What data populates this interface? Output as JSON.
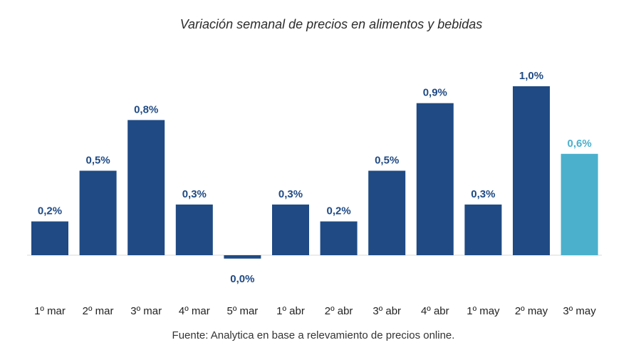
{
  "chart_data": {
    "type": "bar",
    "title": "Variación semanal de precios en alimentos y bebidas",
    "categories": [
      "1º mar",
      "2º mar",
      "3º mar",
      "4º mar",
      "5º mar",
      "1º abr",
      "2º abr",
      "3º abr",
      "4º abr",
      "1º may",
      "2º may",
      "3º may"
    ],
    "values": [
      0.2,
      0.5,
      0.8,
      0.3,
      -0.02,
      0.3,
      0.2,
      0.5,
      0.9,
      0.3,
      1.0,
      0.6
    ],
    "data_labels": [
      "0,2%",
      "0,5%",
      "0,8%",
      "0,3%",
      "0,0%",
      "0,3%",
      "0,2%",
      "0,5%",
      "0,9%",
      "0,3%",
      "1,0%",
      "0,6%"
    ],
    "xlabel": "",
    "ylabel": "",
    "grid": false,
    "legend": "none",
    "colors": {
      "bar": "#1f4a84",
      "highlight_bar": "#4bb0cc",
      "label": "#1f4a84",
      "highlight_label": "#4bb0cc",
      "baseline": "#d9d9d9"
    },
    "highlight_index": 11
  },
  "source": "Fuente: Analytica en base a relevamiento de precios online."
}
